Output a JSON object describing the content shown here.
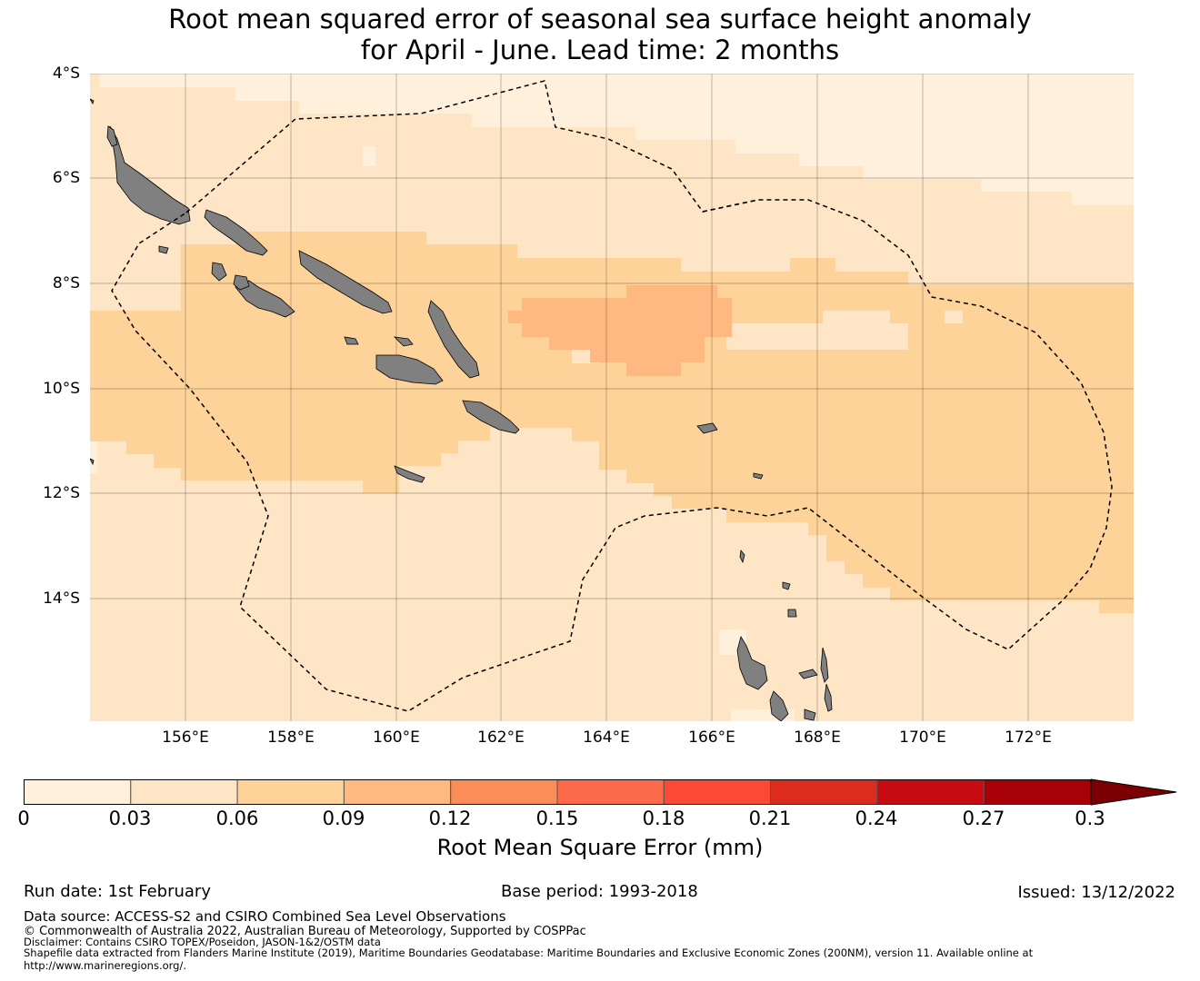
{
  "title": {
    "line1": "Root mean squared error of seasonal sea surface height anomaly",
    "line2": "for April - June. Lead time: 2 months"
  },
  "map": {
    "latitude_labels": [
      "4°S",
      "6°S",
      "8°S",
      "10°S",
      "12°S",
      "14°S"
    ],
    "longitude_labels": [
      "156°E",
      "158°E",
      "160°E",
      "162°E",
      "164°E",
      "166°E",
      "168°E",
      "170°E",
      "172°E"
    ],
    "extent": {
      "lon_min": 154.2,
      "lon_max": 174.0,
      "lat_min": -16.3,
      "lat_max": -4.0
    },
    "land_color": "#808080",
    "boundary_line": "dashed black EEZ boundaries"
  },
  "colorbar": {
    "label": "Root Mean Square Error (mm)",
    "ticks": [
      "0",
      "0.03",
      "0.06",
      "0.09",
      "0.12",
      "0.15",
      "0.18",
      "0.21",
      "0.24",
      "0.27",
      "0.3"
    ],
    "colors": [
      "#fff0dc",
      "#fee5c6",
      "#fdd39a",
      "#fdb97f",
      "#fc8d59",
      "#fc6a4a",
      "#fb4a34",
      "#db2c1e",
      "#c70b12",
      "#a80007"
    ],
    "extend_color": "#7a0003"
  },
  "footer": {
    "run_date": "Run date: 1st February",
    "base_period": "Base period: 1993-2018",
    "issued": "Issued: 13/12/2022",
    "data_source": "Data source: ACCESS-S2 and CSIRO Combined Sea Level Observations",
    "copyright": "© Commonwealth of Australia 2022, Australian Bureau of Meteorology, Supported by COSPPac",
    "disclaimer": "Disclaimer: Contains CSIRO TOPEX/Poseidon, JASON-1&2/OSTM data",
    "shapefile": "Shapefile data extracted from Flanders Marine Institute (2019), Maritime Boundaries Geodatabase: Maritime Boundaries and Exclusive Economic Zones (200NM), version 11. Available online at",
    "url": "http://www.marineregions.org/."
  }
}
